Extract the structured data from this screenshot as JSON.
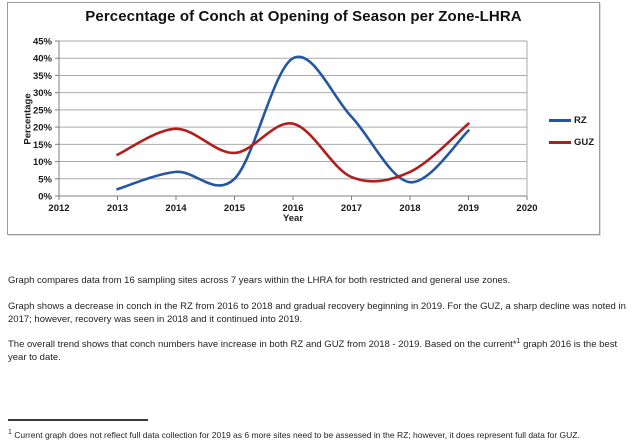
{
  "colors": {
    "grid": "#ABABAB",
    "axis": "#7F7F7F",
    "chart_border": "#9A9A9A",
    "text": "#1A1A1A",
    "rz_blue": "#2157A4",
    "guz_red": "#B01E1E"
  },
  "chart_data": {
    "type": "line",
    "title": "Percecntage of Conch at Opening of Season per Zone-LHRA",
    "xlabel": "Year",
    "ylabel": "Percentage",
    "xlim": [
      2012,
      2020
    ],
    "ylim": [
      0,
      45
    ],
    "y_tick_step": 5,
    "y_tick_suffix": "%",
    "x_ticks": [
      2012,
      2013,
      2014,
      2015,
      2016,
      2017,
      2018,
      2019,
      2020
    ],
    "grid": true,
    "smooth": true,
    "legend_position": "right",
    "x": [
      2013,
      2014,
      2015,
      2016,
      2017,
      2018,
      2019
    ],
    "series": [
      {
        "name": "RZ",
        "color": "#2157A4",
        "values": [
          2,
          7,
          5,
          40,
          23,
          4,
          19
        ]
      },
      {
        "name": "GUZ",
        "color": "#B01E1E",
        "values": [
          12,
          19.5,
          12.5,
          21,
          5.5,
          7,
          21
        ]
      }
    ]
  },
  "document": {
    "paragraphs": {
      "p1": "Graph compares data from 16 sampling sites across 7 years within the LHRA for both restricted and general use zones.",
      "p2": "Graph shows a decrease in conch in the RZ from 2016 to 2018 and gradual recovery beginning in 2019. For the GUZ, a sharp decline was noted in 2017; however, recovery was seen in 2018 and it continued into 2019.",
      "p3_before_sup": "The overall trend shows that conch numbers have increase in both RZ and GUZ from 2018 - 2019. Based on the current*",
      "p3_sup": "1",
      "p3_after_sup": " graph 2016 is the best year to date."
    },
    "footnote": {
      "sup": "1",
      "text": " Current graph does not reflect full data collection for 2019 as 6 more sites need to be assessed in the RZ; however, it does represent full data for GUZ."
    }
  }
}
